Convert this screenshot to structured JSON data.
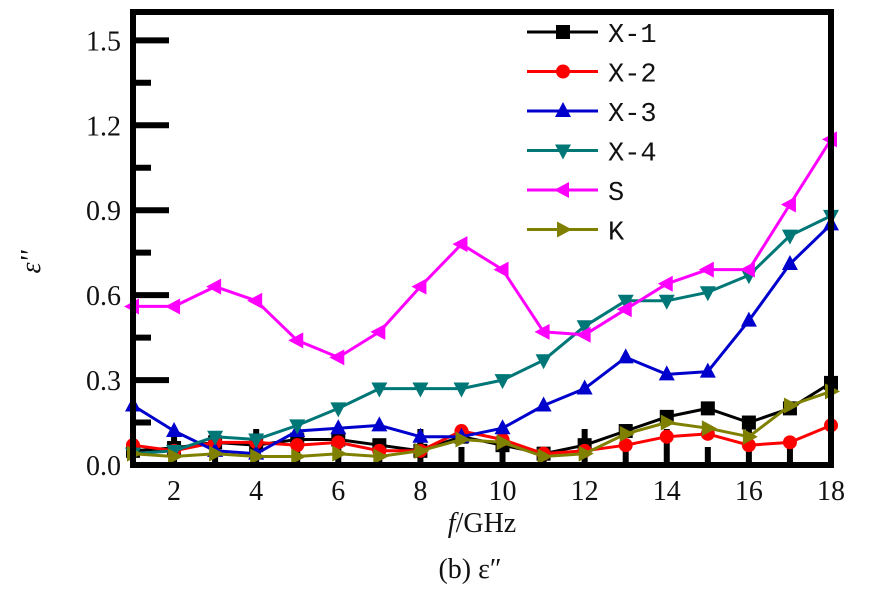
{
  "chart_data": {
    "type": "line",
    "x": [
      1,
      2,
      3,
      4,
      5,
      6,
      7,
      8,
      9,
      10,
      11,
      12,
      13,
      14,
      15,
      16,
      17,
      18
    ],
    "xlabel_italic": "f",
    "xlabel_rest": "/GHz",
    "ylabel": "ε''",
    "caption": "(b)  ε″",
    "xlim": [
      1,
      18
    ],
    "ylim": [
      0,
      1.6
    ],
    "xticks": [
      2,
      4,
      6,
      8,
      10,
      12,
      14,
      16,
      18
    ],
    "yticks": [
      0.0,
      0.3,
      0.6,
      0.9,
      1.2,
      1.5
    ],
    "ytick_labels": [
      "0.0",
      "0.3",
      "0.6",
      "0.9",
      "1.2",
      "1.5"
    ],
    "grid": false,
    "legend_position": "top-right",
    "series": [
      {
        "name": "X-1",
        "color": "#000000",
        "marker": "square",
        "values": [
          0.05,
          0.06,
          0.08,
          0.07,
          0.09,
          0.09,
          0.07,
          0.05,
          0.1,
          0.07,
          0.04,
          0.07,
          0.12,
          0.17,
          0.2,
          0.15,
          0.2,
          0.29
        ]
      },
      {
        "name": "X-2",
        "color": "#ff0000",
        "marker": "circle",
        "values": [
          0.07,
          0.05,
          0.08,
          0.08,
          0.07,
          0.08,
          0.05,
          0.05,
          0.12,
          0.09,
          0.04,
          0.05,
          0.07,
          0.1,
          0.11,
          0.07,
          0.08,
          0.14
        ]
      },
      {
        "name": "X-3",
        "color": "#0000cc",
        "marker": "triangle-up",
        "values": [
          0.21,
          0.12,
          0.05,
          0.04,
          0.12,
          0.13,
          0.14,
          0.1,
          0.1,
          0.13,
          0.21,
          0.27,
          0.38,
          0.32,
          0.33,
          0.51,
          0.71,
          0.85
        ]
      },
      {
        "name": "X-4",
        "color": "#007777",
        "marker": "triangle-down",
        "values": [
          0.04,
          0.05,
          0.1,
          0.09,
          0.14,
          0.2,
          0.27,
          0.27,
          0.27,
          0.3,
          0.37,
          0.49,
          0.58,
          0.58,
          0.61,
          0.67,
          0.81,
          0.88
        ]
      },
      {
        "name": "S",
        "color": "#ff00ff",
        "marker": "triangle-left",
        "values": [
          0.56,
          0.56,
          0.63,
          0.58,
          0.44,
          0.38,
          0.47,
          0.63,
          0.78,
          0.69,
          0.47,
          0.46,
          0.55,
          0.64,
          0.69,
          0.69,
          0.92,
          1.15
        ]
      },
      {
        "name": "K",
        "color": "#808000",
        "marker": "triangle-right",
        "values": [
          0.04,
          0.03,
          0.04,
          0.03,
          0.03,
          0.04,
          0.03,
          0.05,
          0.09,
          0.08,
          0.03,
          0.04,
          0.11,
          0.15,
          0.13,
          0.1,
          0.21,
          0.26
        ]
      }
    ]
  }
}
